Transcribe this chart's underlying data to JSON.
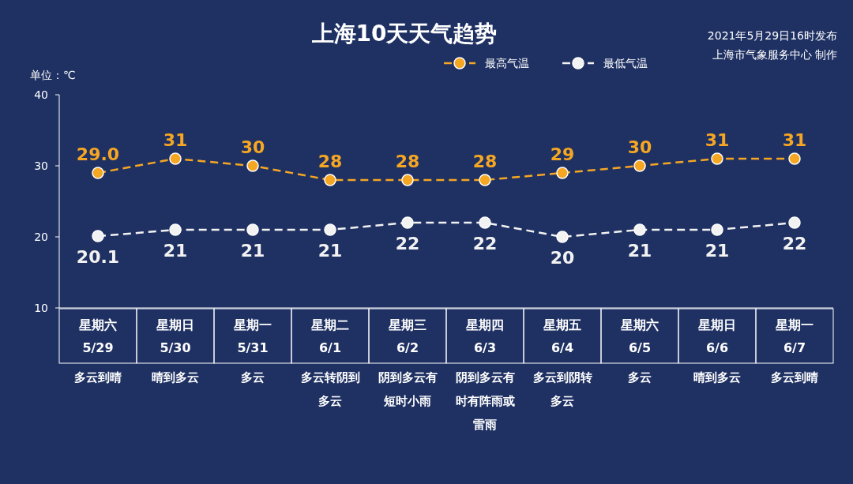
{
  "chart_data": {
    "type": "line",
    "title": "上海10天天气趋势",
    "ylabel": "单位：℃",
    "annotations": [
      "2021年5月29日16时发布",
      "上海市气象服务中心 制作"
    ],
    "categories": [
      "星期六\n5/29\n多云到晴",
      "星期日\n5/30\n晴到多云",
      "星期一\n5/31\n多云",
      "星期二\n6/1\n多云转阴到多云",
      "星期三\n6/2\n阴到多云有短时小雨",
      "星期四\n6/3\n阴到多云有时有阵雨或雷雨",
      "星期五\n6/4\n多云到阴转多云",
      "星期六\n6/5\n多云",
      "星期日\n6/6\n晴到多云",
      "星期一\n6/7\n多云到晴"
    ],
    "series": [
      {
        "name": "最高气温",
        "color": "#f5a623",
        "values": [
          29.0,
          31,
          30,
          28,
          28,
          28,
          29,
          30,
          31,
          31
        ],
        "value_labels": [
          "29.0",
          "31",
          "30",
          "28",
          "28",
          "28",
          "29",
          "30",
          "31",
          "31"
        ]
      },
      {
        "name": "最低气温",
        "color": "#f2f2f2",
        "values": [
          20.1,
          21,
          21,
          21,
          22,
          22,
          20,
          21,
          21,
          22
        ],
        "value_labels": [
          "20.1",
          "21",
          "21",
          "21",
          "22",
          "22",
          "20",
          "21",
          "21",
          "22"
        ]
      }
    ],
    "ylim": [
      10,
      40
    ],
    "yticks": [
      10,
      20,
      30,
      40
    ],
    "grid": false,
    "legend": "top",
    "marker": "circle",
    "line_style": "dashed"
  }
}
